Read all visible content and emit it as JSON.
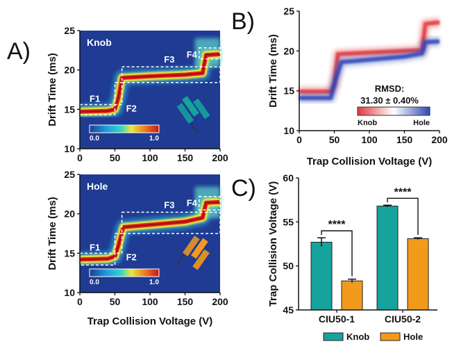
{
  "figure": {
    "panels": {
      "a": "A)",
      "b": "B)",
      "c": "C)"
    }
  },
  "colors": {
    "heat_bg": "#1f3b93",
    "heat_mid": "#2fd4c9",
    "heat_hot": "#e6201a",
    "diff_red": "#e3373b",
    "diff_blue": "#2d47b8",
    "knob": "#16a39d",
    "hole": "#f29a1c"
  },
  "chart_data": [
    {
      "id": "A-top",
      "type": "heatmap",
      "title": "Knob",
      "xlabel": "",
      "ylabel": "Drift Time (ms)",
      "xlim": [
        0,
        200
      ],
      "ylim": [
        10,
        25
      ],
      "xticks": [
        "0",
        "50",
        "100",
        "150",
        "200"
      ],
      "yticks": [
        "10",
        "15",
        "20",
        "25"
      ],
      "colorbar": {
        "min": "0.0",
        "max": "1.0"
      },
      "features": [
        {
          "label": "F1",
          "x": [
            0,
            50
          ],
          "y": [
            14.3,
            15.6
          ]
        },
        {
          "label": "F2",
          "x": [
            50,
            60
          ],
          "y": [
            15.6,
            18.4
          ]
        },
        {
          "label": "F3",
          "x": [
            60,
            200
          ],
          "y": [
            18.4,
            20.4
          ]
        },
        {
          "label": "F4",
          "x": [
            170,
            200
          ],
          "y": [
            21.4,
            22.8
          ]
        }
      ],
      "trace": [
        [
          0,
          14.7
        ],
        [
          40,
          14.8
        ],
        [
          50,
          15.0
        ],
        [
          55,
          16.5
        ],
        [
          60,
          19.0
        ],
        [
          100,
          19.2
        ],
        [
          150,
          19.4
        ],
        [
          175,
          19.6
        ],
        [
          180,
          21.9
        ],
        [
          200,
          22.0
        ]
      ],
      "icon": "knob-protein-icon"
    },
    {
      "id": "A-bottom",
      "type": "heatmap",
      "title": "Hole",
      "xlabel": "Trap Collision Voltage (V)",
      "ylabel": "Drift Time (ms)",
      "xlim": [
        0,
        200
      ],
      "ylim": [
        10,
        25
      ],
      "xticks": [
        "0",
        "50",
        "100",
        "150",
        "200"
      ],
      "yticks": [
        "10",
        "15",
        "20",
        "25"
      ],
      "colorbar": {
        "min": "0.0",
        "max": "1.0"
      },
      "features": [
        {
          "label": "F1",
          "x": [
            0,
            50
          ],
          "y": [
            13.5,
            15.0
          ]
        },
        {
          "label": "F2",
          "x": [
            50,
            60
          ],
          "y": [
            15.0,
            17.5
          ]
        },
        {
          "label": "F3",
          "x": [
            60,
            200
          ],
          "y": [
            17.5,
            20.2
          ]
        },
        {
          "label": "F4",
          "x": [
            170,
            200
          ],
          "y": [
            20.5,
            22.2
          ]
        }
      ],
      "trace": [
        [
          0,
          14.2
        ],
        [
          40,
          14.3
        ],
        [
          50,
          14.6
        ],
        [
          55,
          16.0
        ],
        [
          62,
          18.3
        ],
        [
          100,
          18.6
        ],
        [
          150,
          19.0
        ],
        [
          175,
          19.5
        ],
        [
          180,
          21.4
        ],
        [
          200,
          21.5
        ]
      ],
      "icon": "hole-protein-icon"
    },
    {
      "id": "B",
      "type": "heatmap",
      "title": "",
      "xlabel": "Trap Collision Voltage (V)",
      "ylabel": "Drift Time (ms)",
      "xlim": [
        0,
        200
      ],
      "ylim": [
        10,
        25
      ],
      "xticks": [
        "0",
        "50",
        "100",
        "150",
        "200"
      ],
      "yticks": [
        "10",
        "15",
        "20",
        "25"
      ],
      "rmsd_label": "RMSD:",
      "rmsd_value": "31.30 ± 0.40%",
      "colorbar": {
        "min": "Knob",
        "max": "Hole"
      },
      "red_trace": [
        [
          0,
          14.9
        ],
        [
          45,
          14.9
        ],
        [
          50,
          15.8
        ],
        [
          55,
          19.6
        ],
        [
          100,
          19.8
        ],
        [
          150,
          20.0
        ],
        [
          175,
          20.1
        ],
        [
          180,
          23.4
        ],
        [
          200,
          23.6
        ]
      ],
      "blue_trace": [
        [
          0,
          14.1
        ],
        [
          45,
          14.1
        ],
        [
          52,
          16.5
        ],
        [
          60,
          18.6
        ],
        [
          100,
          18.9
        ],
        [
          150,
          19.3
        ],
        [
          175,
          19.7
        ],
        [
          180,
          21.1
        ],
        [
          200,
          21.2
        ]
      ]
    },
    {
      "id": "C",
      "type": "bar",
      "title": "",
      "xlabel": "",
      "ylabel": "Trap Collision Voltage (V)",
      "ylim": [
        45,
        60
      ],
      "yticks": [
        "45",
        "50",
        "55",
        "60"
      ],
      "categories": [
        "CIU50-1",
        "CIU50-2"
      ],
      "series": [
        {
          "name": "Knob",
          "values": [
            52.7,
            56.8
          ],
          "errors": [
            0.5,
            0.1
          ]
        },
        {
          "name": "Hole",
          "values": [
            48.3,
            53.1
          ],
          "errors": [
            0.2,
            0.1
          ]
        }
      ],
      "significance": [
        "****",
        "****"
      ],
      "legend": "bottom"
    }
  ]
}
